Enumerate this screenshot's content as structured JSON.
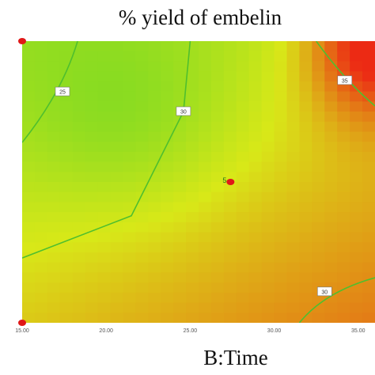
{
  "chart_data": {
    "type": "heatmap",
    "title": "% yield of embelin",
    "xlabel": "B:Time",
    "ylabel": "",
    "xlim": [
      15,
      36
    ],
    "ylim": [
      0,
      1
    ],
    "x_ticks": [
      "15.00",
      "20.00",
      "25.00",
      "30.00",
      "35.00"
    ],
    "x_tick_values": [
      15,
      20,
      25,
      30,
      35
    ],
    "grid": false,
    "colormap": {
      "low": "#3ccf2a",
      "mid": "#d8e818",
      "high": "#ec2a14"
    },
    "contours": [
      {
        "label": "25",
        "points": [
          [
            18.3,
            1.0
          ],
          [
            17.4,
            0.82
          ],
          [
            15.0,
            0.64
          ]
        ]
      },
      {
        "label": "30",
        "points": [
          [
            25.0,
            1.0
          ],
          [
            24.6,
            0.75
          ],
          [
            21.5,
            0.38
          ],
          [
            15.0,
            0.23
          ]
        ]
      },
      {
        "label": "30",
        "points": [
          [
            36.0,
            0.16
          ],
          [
            33.0,
            0.11
          ],
          [
            31.5,
            0.0
          ]
        ]
      },
      {
        "label": "35",
        "points": [
          [
            32.5,
            1.0
          ],
          [
            34.2,
            0.86
          ],
          [
            36.0,
            0.77
          ]
        ]
      }
    ],
    "design_points": [
      {
        "x": 15.0,
        "y": 1.0,
        "label": ""
      },
      {
        "x": 15.0,
        "y": 0.0,
        "label": ""
      },
      {
        "x": 27.4,
        "y": 0.5,
        "label": "5"
      }
    ],
    "contour_color": "#4fbf2e",
    "point_color": "#e01818"
  }
}
